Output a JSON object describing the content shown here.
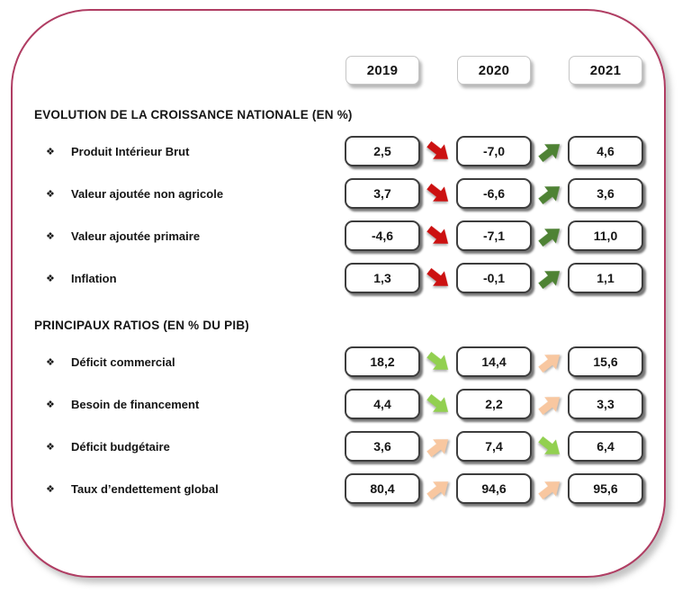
{
  "bullet": "❖",
  "years": [
    "2019",
    "2020",
    "2021"
  ],
  "colors": {
    "red": "#cc1111",
    "green": "#4e8234",
    "lightgreen": "#92d050",
    "peach": "#f8c7a0",
    "card_border": "#b03d63",
    "box_border": "#3d3d3d"
  },
  "sections": [
    {
      "title": "EVOLUTION DE LA CROISSANCE NATIONALE (EN %)",
      "rows": [
        {
          "label": "Produit Intérieur Brut",
          "values": [
            "2,5",
            "-7,0",
            "4,6"
          ],
          "arrows": [
            "red-down",
            "green-up"
          ]
        },
        {
          "label": "Valeur ajoutée non agricole",
          "values": [
            "3,7",
            "-6,6",
            "3,6"
          ],
          "arrows": [
            "red-down",
            "green-up"
          ]
        },
        {
          "label": "Valeur ajoutée primaire",
          "values": [
            "-4,6",
            "-7,1",
            "11,0"
          ],
          "arrows": [
            "red-down",
            "green-up"
          ]
        },
        {
          "label": "Inflation",
          "values": [
            "1,3",
            "-0,1",
            "1,1"
          ],
          "arrows": [
            "red-down",
            "green-up"
          ]
        }
      ]
    },
    {
      "title": "PRINCIPAUX RATIOS (EN % DU PIB)",
      "rows": [
        {
          "label": "Déficit commercial",
          "values": [
            "18,2",
            "14,4",
            "15,6"
          ],
          "arrows": [
            "lightgreen-down",
            "peach-up"
          ]
        },
        {
          "label": "Besoin de financement",
          "values": [
            "4,4",
            "2,2",
            "3,3"
          ],
          "arrows": [
            "lightgreen-down",
            "peach-up"
          ]
        },
        {
          "label": "Déficit budgétaire",
          "values": [
            "3,6",
            "7,4",
            "6,4"
          ],
          "arrows": [
            "peach-up",
            "lightgreen-down"
          ]
        },
        {
          "label": "Taux d’endettement global",
          "values": [
            "80,4",
            "94,6",
            "95,6"
          ],
          "arrows": [
            "peach-up",
            "peach-up"
          ]
        }
      ]
    }
  ],
  "chart_data": {
    "type": "table",
    "categories": [
      "2019",
      "2020",
      "2021"
    ],
    "groups": [
      {
        "title": "EVOLUTION DE LA CROISSANCE NATIONALE (EN %)",
        "series": [
          {
            "name": "Produit Intérieur Brut",
            "values": [
              2.5,
              -7.0,
              4.6
            ]
          },
          {
            "name": "Valeur ajoutée non agricole",
            "values": [
              3.7,
              -6.6,
              3.6
            ]
          },
          {
            "name": "Valeur ajoutée primaire",
            "values": [
              -4.6,
              -7.1,
              11.0
            ]
          },
          {
            "name": "Inflation",
            "values": [
              1.3,
              -0.1,
              1.1
            ]
          }
        ]
      },
      {
        "title": "PRINCIPAUX RATIOS (EN % DU PIB)",
        "series": [
          {
            "name": "Déficit commercial",
            "values": [
              18.2,
              14.4,
              15.6
            ]
          },
          {
            "name": "Besoin de financement",
            "values": [
              4.4,
              2.2,
              3.3
            ]
          },
          {
            "name": "Déficit budgétaire",
            "values": [
              3.6,
              7.4,
              6.4
            ]
          },
          {
            "name": "Taux d’endettement global",
            "values": [
              80.4,
              94.6,
              95.6
            ]
          }
        ]
      }
    ]
  }
}
